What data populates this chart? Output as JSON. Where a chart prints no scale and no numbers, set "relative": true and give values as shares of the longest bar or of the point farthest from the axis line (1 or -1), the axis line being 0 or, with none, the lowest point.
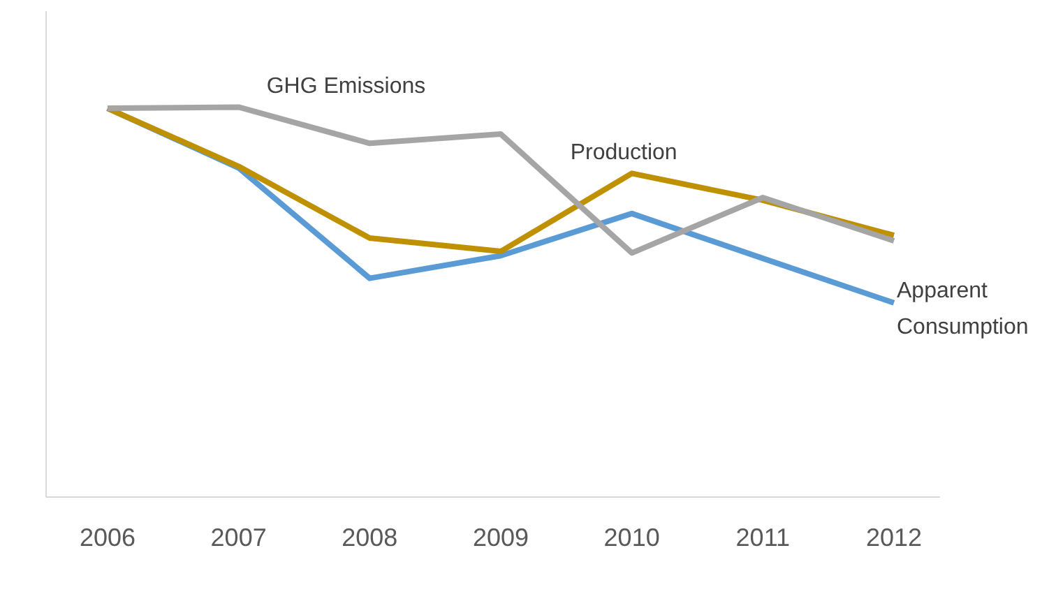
{
  "chart_data": {
    "type": "line",
    "relative": true,
    "categories": [
      "2006",
      "2007",
      "2008",
      "2009",
      "2010",
      "2011",
      "2012"
    ],
    "series": [
      {
        "name": "Apparent Consumption",
        "color": "#5b9bd5",
        "values": [
          0.997,
          0.844,
          0.561,
          0.619,
          0.727,
          0.612,
          0.498
        ]
      },
      {
        "name": "Production",
        "color": "#bf9000",
        "values": [
          0.997,
          0.848,
          0.664,
          0.63,
          0.83,
          0.761,
          0.671
        ]
      },
      {
        "name": "GHG Emissions",
        "color": "#a5a5a5",
        "values": [
          0.997,
          1,
          0.907,
          0.931,
          0.626,
          0.768,
          0.657
        ]
      }
    ],
    "grid": false,
    "legend": false,
    "marker": "none",
    "line_style": "solid"
  }
}
